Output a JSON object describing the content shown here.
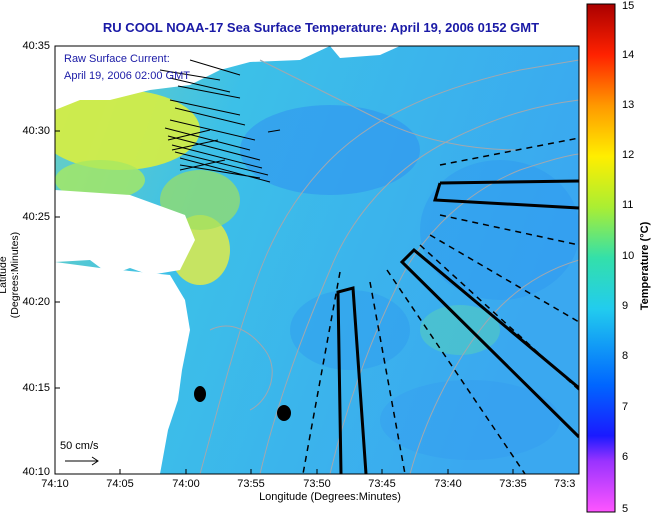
{
  "title": "RU COOL  NOAA-17  Sea Surface Temperature:  April 19, 2006 0152 GMT",
  "legend": {
    "line1": "Raw Surface Current:",
    "line2": "April 19, 2006 02:00 GMT"
  },
  "scale_label": "50 cm/s",
  "axes": {
    "xlabel": "Longitude (Degrees:Minutes)",
    "ylabel": "Latitude (Degrees:Minutes)",
    "xticks": [
      "74:10",
      "74:05",
      "74:00",
      "73:55",
      "73:50",
      "73:45",
      "73:40",
      "73:35",
      "73:3"
    ],
    "yticks": [
      "40:35",
      "40:30",
      "40:25",
      "40:20",
      "40:15",
      "40:10"
    ]
  },
  "colorbar": {
    "label": "Temperature (°C)",
    "ticks": [
      "15",
      "14",
      "13",
      "12",
      "11",
      "10",
      "9",
      "8",
      "7",
      "6",
      "5"
    ],
    "range": [
      5,
      15
    ]
  },
  "colors": {
    "title_text": "#1a1aa6",
    "land": "#ffffff",
    "water_mid": "#3fb8f0"
  }
}
